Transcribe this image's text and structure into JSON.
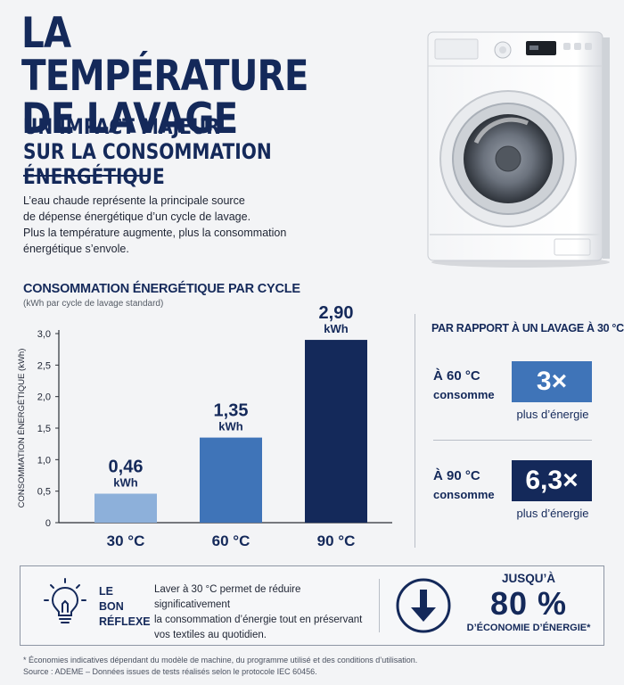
{
  "header": {
    "title_line1": "LA TEMPÉRATURE",
    "title_line2": "DE LAVAGE",
    "subtitle_line1": "UN IMPACT MAJEUR",
    "subtitle_line2": "SUR LA CONSOMMATION ÉNERGÉTIQUE"
  },
  "intro": {
    "line1": "L’eau chaude représente la principale source",
    "line2": "de dépense énergétique d’un cycle de lavage.",
    "line3": "Plus la température augmente, plus la consommation",
    "line4": "énergétique s’envole."
  },
  "chart_data": {
    "type": "bar",
    "title": "CONSOMMATION ÉNERGÉTIQUE PAR CYCLE",
    "subtitle": "(kWh par cycle de lavage standard)",
    "ylabel": "CONSOMMATION ÉNERGÉTIQUE (kWh)",
    "xlabel": "",
    "categories": [
      "30 °C",
      "60 °C",
      "90 °C"
    ],
    "values": [
      0.46,
      1.35,
      2.9
    ],
    "value_labels": [
      "0,46",
      "1,35",
      "2,90"
    ],
    "value_unit": "kWh",
    "bar_colors": [
      "#8db0da",
      "#3f74b8",
      "#14295a"
    ],
    "ylim": [
      0,
      3.0
    ],
    "yticks": [
      0,
      0.5,
      1.0,
      1.5,
      2.0,
      2.5,
      3.0
    ],
    "ytick_labels": [
      "0",
      "0,5",
      "1,0",
      "1,5",
      "2,0",
      "2,5",
      "3,0"
    ],
    "grid": false
  },
  "comparison": {
    "heading": "PAR RAPPORT À UN LAVAGE À 30 °C",
    "items": [
      {
        "temp": "À 60 °C",
        "verb": "consomme",
        "value": "3×",
        "caption": "plus d’énergie",
        "color": "#3f74b8"
      },
      {
        "temp": "À 90 °C",
        "verb": "consomme",
        "value": "6,3×",
        "caption": "plus d’énergie",
        "color": "#14295a"
      }
    ]
  },
  "tip": {
    "title_line1": "LE",
    "title_line2": "BON",
    "title_line3": "RÉFLEXE",
    "text_line1": "Laver à 30 °C permet de réduire significativement",
    "text_line2": "la consommation d’énergie tout en préservant",
    "text_line3": "vos textiles au quotidien.",
    "savings_pre": "JUSQU’À",
    "savings_value": "80 %",
    "savings_post": "D’ÉCONOMIE D’ÉNERGIE*"
  },
  "footnote": {
    "line1": "* Économies indicatives dépendant du modèle de machine, du programme utilisé et des conditions d’utilisation.",
    "line2": "Source : ADEME – Données issues de tests réalisés selon le protocole IEC 60456."
  },
  "icons": {
    "washer": "washing-machine-icon",
    "bulb": "lightbulb-icon",
    "arrow": "down-arrow-icon"
  },
  "colors": {
    "navy": "#14295a",
    "mid_blue": "#3f74b8",
    "light_blue": "#8db0da"
  }
}
